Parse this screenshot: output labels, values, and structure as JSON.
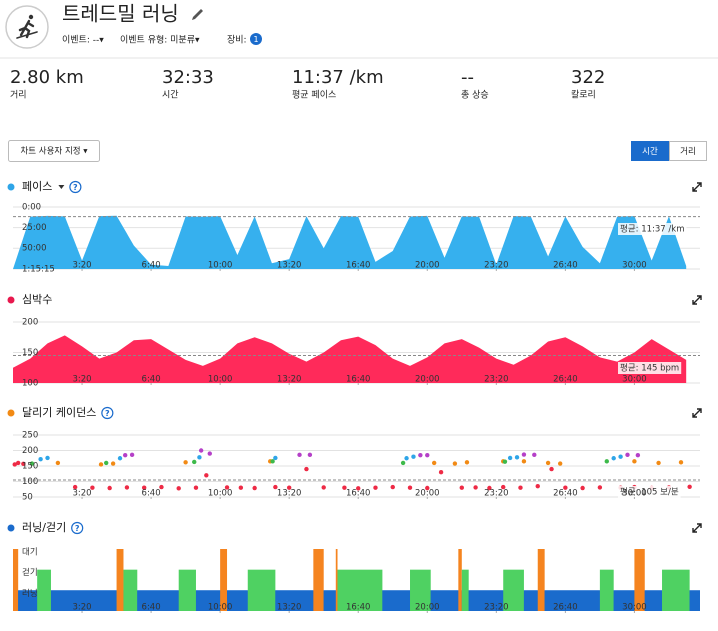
{
  "header": {
    "title": "트레드밀 러닝",
    "event": "이벤트: --▾",
    "event_type": "이벤트 유형: 미분류▾",
    "gear": "장비:",
    "gear_count": "1"
  },
  "stats": [
    {
      "value": "2.80 km",
      "label": "거리"
    },
    {
      "value": "32:33",
      "label": "시간"
    },
    {
      "value": "11:37 /km",
      "label": "평균 페이스"
    },
    {
      "value": "--",
      "label": "총 상승"
    },
    {
      "value": "322",
      "label": "칼로리"
    }
  ],
  "controls": {
    "customize": "차트 사용자 지정 ▾",
    "toggle": [
      "시간",
      "거리"
    ],
    "active": 0
  },
  "time_axis": {
    "xlim": [
      0,
      1990
    ],
    "xticks": [
      {
        "value": 200,
        "label": "3:20"
      },
      {
        "value": 400,
        "label": "6:40"
      },
      {
        "value": 600,
        "label": "10:00"
      },
      {
        "value": 800,
        "label": "13:20"
      },
      {
        "value": 1000,
        "label": "16:40"
      },
      {
        "value": 1200,
        "label": "20:00"
      },
      {
        "value": 1400,
        "label": "23:20"
      },
      {
        "value": 1600,
        "label": "26:40"
      },
      {
        "value": 1800,
        "label": "30:00"
      }
    ]
  },
  "chart_data": [
    {
      "type": "area",
      "title": "페이스",
      "dot": "#2ea5e8",
      "color": "#36b0ee",
      "help": "?",
      "dropdown": true,
      "invert": true,
      "ylim": [
        0,
        4515
      ],
      "yticks": [
        {
          "value": 0,
          "label": "0:00"
        },
        {
          "value": 1500,
          "label": "25:00"
        },
        {
          "value": 3000,
          "label": "50:00"
        },
        {
          "value": 4515,
          "label": "1:15:15"
        }
      ],
      "x": [
        0,
        50,
        100,
        150,
        200,
        250,
        300,
        350,
        400,
        450,
        500,
        550,
        600,
        650,
        700,
        750,
        800,
        850,
        900,
        950,
        1000,
        1050,
        1100,
        1150,
        1200,
        1250,
        1300,
        1350,
        1400,
        1450,
        1500,
        1550,
        1600,
        1650,
        1700,
        1750,
        1800,
        1850,
        1900,
        1950
      ],
      "values": [
        4515,
        700,
        650,
        680,
        3900,
        660,
        640,
        2800,
        4200,
        4300,
        690,
        700,
        660,
        3500,
        680,
        4100,
        3800,
        670,
        3000,
        660,
        700,
        4000,
        3200,
        690,
        650,
        3700,
        680,
        700,
        4200,
        660,
        690,
        3600,
        680,
        2900,
        4100,
        700,
        660,
        3900,
        670,
        4300
      ],
      "average": 697,
      "average_label": "평균: 11:37 /km"
    },
    {
      "type": "area",
      "title": "심박수",
      "dot": "#e8184d",
      "color": "#ff2a5a",
      "invert": false,
      "ylim": [
        100,
        200
      ],
      "yticks": [
        200,
        150,
        100
      ],
      "x": [
        0,
        50,
        100,
        150,
        200,
        250,
        300,
        350,
        400,
        450,
        500,
        550,
        600,
        650,
        700,
        750,
        800,
        850,
        900,
        950,
        1000,
        1050,
        1100,
        1150,
        1200,
        1250,
        1300,
        1350,
        1400,
        1450,
        1500,
        1550,
        1600,
        1650,
        1700,
        1750,
        1800,
        1850,
        1900,
        1950
      ],
      "values": [
        125,
        140,
        165,
        178,
        160,
        140,
        150,
        170,
        172,
        155,
        138,
        128,
        140,
        165,
        175,
        165,
        148,
        135,
        150,
        170,
        176,
        162,
        140,
        128,
        142,
        165,
        172,
        158,
        140,
        130,
        145,
        168,
        175,
        160,
        142,
        135,
        150,
        172,
        155,
        138
      ],
      "average": 145,
      "average_label": "평균: 145 bpm"
    },
    {
      "type": "scatter",
      "title": "달리기 케이던스",
      "dot": "#f28a14",
      "help": "?",
      "ylim": [
        50,
        250
      ],
      "yticks": [
        250,
        200,
        150,
        100,
        50
      ],
      "series": [
        {
          "color": "#ee2a45",
          "x": [
            5,
            15,
            30,
            180,
            230,
            280,
            330,
            380,
            430,
            480,
            530,
            560,
            620,
            660,
            700,
            760,
            800,
            850,
            900,
            960,
            1000,
            1050,
            1100,
            1150,
            1200,
            1240,
            1300,
            1340,
            1380,
            1420,
            1470,
            1520,
            1560,
            1600,
            1650,
            1700,
            1760,
            1800,
            1850,
            1900,
            1960
          ],
          "values": [
            155,
            160,
            157,
            82,
            80,
            79,
            81,
            80,
            82,
            78,
            80,
            120,
            81,
            80,
            79,
            82,
            80,
            140,
            81,
            80,
            78,
            80,
            82,
            80,
            79,
            130,
            80,
            81,
            79,
            82,
            80,
            85,
            140,
            80,
            79,
            81,
            80,
            82,
            79,
            81,
            83
          ]
        },
        {
          "color": "#f28a14",
          "x": [
            130,
            255,
            290,
            500,
            745,
            1220,
            1280,
            1315,
            1420,
            1480,
            1550,
            1585,
            1800,
            1870,
            1935
          ],
          "values": [
            160,
            155,
            158,
            162,
            165,
            160,
            158,
            162,
            165,
            165,
            160,
            158,
            165,
            160,
            162
          ]
        },
        {
          "color": "#3dba4a",
          "x": [
            55,
            270,
            525,
            752,
            1130,
            1425,
            1720
          ],
          "values": [
            158,
            160,
            163,
            165,
            160,
            164,
            165
          ]
        },
        {
          "color": "#2ea5e8",
          "x": [
            80,
            100,
            310,
            540,
            760,
            1140,
            1160,
            1440,
            1460,
            1740,
            1760
          ],
          "values": [
            172,
            176,
            175,
            178,
            176,
            175,
            180,
            176,
            178,
            175,
            180
          ]
        },
        {
          "color": "#b540c8",
          "x": [
            325,
            345,
            545,
            570,
            830,
            860,
            1180,
            1200,
            1480,
            1510,
            1780,
            1810
          ],
          "values": [
            185,
            186,
            200,
            190,
            186,
            186,
            185,
            185,
            187,
            186,
            186,
            185
          ]
        }
      ],
      "average": 105,
      "average_label": "평균: 105 보/분"
    },
    {
      "type": "step",
      "title": "러닝/걷기",
      "dot": "#1a6bcc",
      "help": "?",
      "levels": [
        "러닝",
        "걷기",
        "대기"
      ],
      "level_colors": [
        "#1a6bcc",
        "#4fd162",
        "#f5841f"
      ],
      "x": [
        0,
        15,
        70,
        110,
        300,
        320,
        360,
        480,
        530,
        600,
        620,
        680,
        760,
        870,
        900,
        935,
        940,
        1070,
        1150,
        1210,
        1290,
        1300,
        1320,
        1420,
        1480,
        1520,
        1540,
        1700,
        1740,
        1800,
        1830,
        1880,
        1960
      ],
      "values": [
        2,
        0,
        1,
        0,
        2,
        1,
        0,
        1,
        0,
        2,
        0,
        1,
        0,
        2,
        0,
        2,
        1,
        0,
        1,
        0,
        2,
        1,
        0,
        1,
        0,
        2,
        0,
        1,
        0,
        2,
        0,
        1,
        0
      ]
    }
  ]
}
